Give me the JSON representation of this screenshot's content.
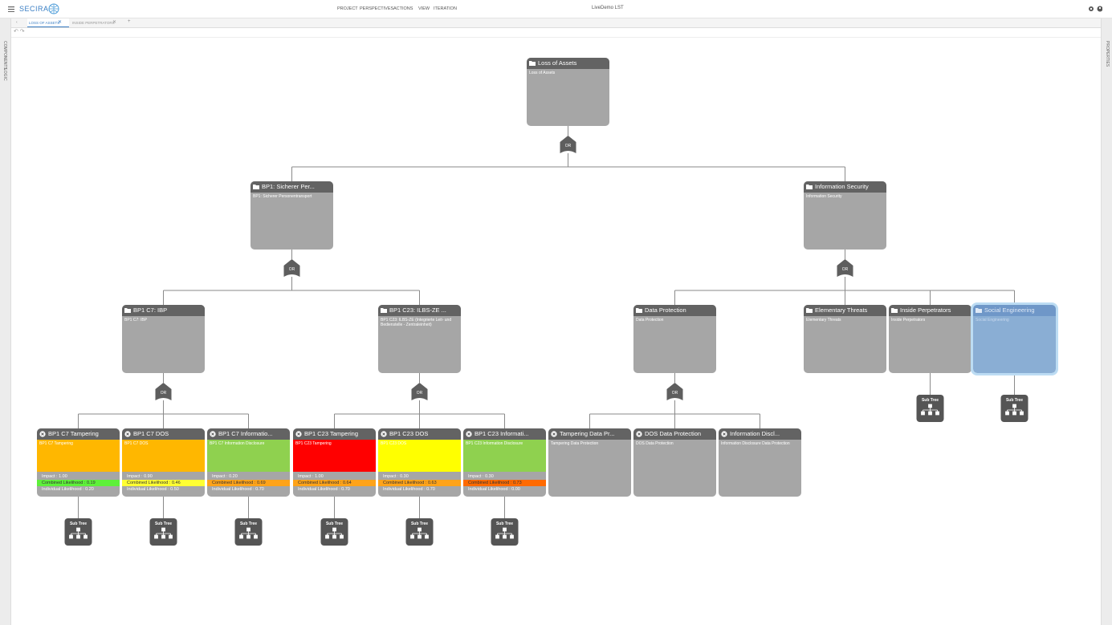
{
  "header": {
    "logo": "SECIRA",
    "menu": [
      "PROJECT",
      "PERSPECTIVES",
      "ACTIONS",
      "VIEW",
      "ITERATION"
    ],
    "project": "LiveDemo LST"
  },
  "tabs": [
    "LOSS OF ASSETS",
    "INSIDE PERPETRATORS"
  ],
  "sidebar_left": [
    "COMPONENTS",
    "LOGIC"
  ],
  "sidebar_right": "PROPERTIES",
  "nodes": [
    {
      "title": "Loss of Assets",
      "description": "Loss of Assets"
    },
    {
      "title": "BP1: Sicherer Per...",
      "description": "BP1: Sicherer Personentransport"
    },
    {
      "title": "Information Security",
      "description": "Information Security"
    },
    {
      "title": "BP1 C7: IBP",
      "description": "BP1 C7: IBP"
    },
    {
      "title": "BP1 C23: ILBS-ZE ...",
      "description": "BP1 C23: ILBS-ZE (Integrierte Leit- und Bedienstelle - Zentraleinheit)"
    },
    {
      "title": "Data Protection",
      "description": "Data Protection"
    },
    {
      "title": "Elementary Threats",
      "description": "Elementary Threats"
    },
    {
      "title": "Inside Perpetrators",
      "description": "Inside Perpetrators"
    },
    {
      "title": "Social Engineering",
      "description": "Social Engineering",
      "selected": true
    },
    {
      "title": "BP1 C7 Tampering",
      "description": "BP1 C7 Tampering",
      "color": "#ffb700",
      "impact": "Impact : 1.00",
      "combined": "Combined Likelihood : 0.19",
      "combined_color": "#5ef03a",
      "individual": "Individual Likelihood : 0.20"
    },
    {
      "title": "BP1 C7 DOS",
      "description": "BP1 C7 DOS",
      "color": "#ffb700",
      "impact": "Impact : 0.90",
      "combined": "Combined Likelihood : 0.46",
      "combined_color": "#ffff33",
      "individual": "Individual Likelihood : 0.50"
    },
    {
      "title": "BP1 C7 Informatio...",
      "description": "BP1 C7 Information Disclosure",
      "color": "#8fd14f",
      "impact": "Impact : 0.20",
      "combined": "Combined Likelihood : 0.69",
      "combined_color": "#ffa319",
      "individual": "Individual Likelihood : 0.70"
    },
    {
      "title": "BP1 C23 Tampering",
      "description": "BP1 C23 Tampering",
      "color": "#ff0000",
      "impact": "Impact : 1.00",
      "combined": "Combined Likelihood : 0.64",
      "combined_color": "#ffa319",
      "individual": "Individual Likelihood : 0.70"
    },
    {
      "title": "BP1 C23 DOS",
      "description": "BP1 C23 DOS",
      "color": "#ffff00",
      "impact": "Impact : 0.30",
      "combined": "Combined Likelihood : 0.63",
      "combined_color": "#ffa319",
      "individual": "Individual Likelihood : 0.70"
    },
    {
      "title": "BP1 C23 Informati...",
      "description": "BP1 C23 Information Disclosure",
      "color": "#8fd14f",
      "impact": "Impact : 0.30",
      "combined": "Combined Likelihood : 0.73",
      "combined_color": "#ff6a00",
      "individual": "Individual Likelihood : 0.00"
    },
    {
      "title": "Tampering Data Pr...",
      "description": "Tampering Data Protection"
    },
    {
      "title": "DOS Data Protection",
      "description": "DOS Data Protection"
    },
    {
      "title": "Information Discl...",
      "description": "Information Disclosure Data Protection"
    }
  ],
  "gates": [
    "OR",
    "OR",
    "OR",
    "OR",
    "OR",
    "OR"
  ],
  "subtrees": [
    "Sub Tree",
    "Sub Tree",
    "Sub Tree",
    "Sub Tree",
    "Sub Tree",
    "Sub Tree",
    "Sub Tree",
    "Sub Tree"
  ]
}
